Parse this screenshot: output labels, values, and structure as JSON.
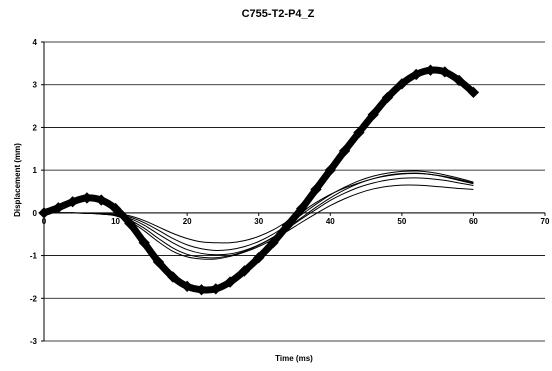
{
  "chart_data": {
    "type": "line",
    "title": "C755-T2-P4_Z",
    "xlabel": "Time (ms)",
    "ylabel": "Displacement (mm)",
    "xlim": [
      0,
      70
    ],
    "ylim": [
      -3,
      4
    ],
    "x_ticks": [
      0,
      10,
      20,
      30,
      40,
      50,
      60,
      70
    ],
    "y_ticks": [
      4,
      3,
      2,
      1,
      0,
      -1,
      -2,
      -3
    ],
    "x_tick_labels": [
      "0",
      "10",
      "20",
      "30",
      "40",
      "50",
      "60",
      "70"
    ],
    "y_tick_labels": [
      "4",
      "3",
      "2",
      "1",
      "0",
      "-1",
      "-2",
      "-3"
    ],
    "grid": "horizontal",
    "legend": "none",
    "series": [
      {
        "style": "thick-markers",
        "color": "#000000",
        "x": [
          0,
          2,
          4,
          6,
          8,
          10,
          12,
          14,
          16,
          18,
          20,
          22,
          24,
          26,
          28,
          30,
          32,
          34,
          36,
          38,
          40,
          42,
          44,
          46,
          48,
          50,
          52,
          54,
          56,
          58,
          60
        ],
        "y": [
          0.0,
          0.12,
          0.26,
          0.35,
          0.3,
          0.1,
          -0.25,
          -0.7,
          -1.15,
          -1.5,
          -1.72,
          -1.8,
          -1.78,
          -1.62,
          -1.36,
          -1.05,
          -0.7,
          -0.3,
          0.1,
          0.55,
          1.0,
          1.45,
          1.88,
          2.3,
          2.7,
          3.02,
          3.24,
          3.34,
          3.3,
          3.1,
          2.82
        ]
      },
      {
        "style": "thin",
        "color": "#000000",
        "x": [
          0,
          2,
          4,
          6,
          8,
          10,
          12,
          14,
          16,
          18,
          20,
          22,
          24,
          26,
          28,
          30,
          32,
          34,
          36,
          38,
          40,
          42,
          44,
          46,
          48,
          50,
          52,
          54,
          56,
          58,
          60
        ],
        "y": [
          0.0,
          0.0,
          0.0,
          -0.01,
          -0.02,
          -0.03,
          -0.07,
          -0.18,
          -0.33,
          -0.48,
          -0.6,
          -0.68,
          -0.7,
          -0.7,
          -0.65,
          -0.55,
          -0.4,
          -0.2,
          0.02,
          0.24,
          0.43,
          0.58,
          0.7,
          0.8,
          0.87,
          0.91,
          0.92,
          0.9,
          0.85,
          0.78,
          0.7
        ]
      },
      {
        "style": "thin",
        "color": "#000000",
        "x": [
          0,
          2,
          4,
          6,
          8,
          10,
          12,
          14,
          16,
          18,
          20,
          22,
          24,
          26,
          28,
          30,
          32,
          34,
          36,
          38,
          40,
          42,
          44,
          46,
          48,
          50,
          52,
          54,
          56,
          58,
          60
        ],
        "y": [
          0.0,
          0.0,
          0.0,
          -0.01,
          -0.02,
          -0.04,
          -0.1,
          -0.23,
          -0.41,
          -0.6,
          -0.75,
          -0.84,
          -0.88,
          -0.86,
          -0.79,
          -0.67,
          -0.5,
          -0.28,
          -0.04,
          0.2,
          0.42,
          0.6,
          0.75,
          0.86,
          0.93,
          0.97,
          0.98,
          0.95,
          0.89,
          0.81,
          0.72
        ]
      },
      {
        "style": "thin",
        "color": "#000000",
        "x": [
          0,
          2,
          4,
          6,
          8,
          10,
          12,
          14,
          16,
          18,
          20,
          22,
          24,
          26,
          28,
          30,
          32,
          34,
          36,
          38,
          40,
          42,
          44,
          46,
          48,
          50,
          52,
          54,
          56,
          58,
          60
        ],
        "y": [
          0.0,
          0.0,
          0.0,
          -0.01,
          -0.02,
          -0.05,
          -0.13,
          -0.29,
          -0.5,
          -0.7,
          -0.86,
          -0.95,
          -0.98,
          -0.96,
          -0.88,
          -0.75,
          -0.57,
          -0.35,
          -0.11,
          0.13,
          0.35,
          0.54,
          0.69,
          0.8,
          0.88,
          0.92,
          0.93,
          0.9,
          0.84,
          0.76,
          0.68
        ]
      },
      {
        "style": "thin",
        "color": "#000000",
        "x": [
          0,
          2,
          4,
          6,
          8,
          10,
          12,
          14,
          16,
          18,
          20,
          22,
          24,
          26,
          28,
          30,
          32,
          34,
          36,
          38,
          40,
          42,
          44,
          46,
          48,
          50,
          52,
          54,
          56,
          58,
          60
        ],
        "y": [
          0.0,
          0.0,
          0.0,
          -0.01,
          -0.03,
          -0.06,
          -0.17,
          -0.36,
          -0.6,
          -0.82,
          -0.97,
          -1.04,
          -1.05,
          -1.0,
          -0.9,
          -0.76,
          -0.58,
          -0.37,
          -0.14,
          0.08,
          0.29,
          0.46,
          0.6,
          0.7,
          0.77,
          0.81,
          0.82,
          0.8,
          0.76,
          0.7,
          0.64
        ]
      },
      {
        "style": "thin",
        "color": "#000000",
        "x": [
          0,
          2,
          4,
          6,
          8,
          10,
          12,
          14,
          16,
          18,
          20,
          22,
          24,
          26,
          28,
          30,
          32,
          34,
          36,
          38,
          40,
          42,
          44,
          46,
          48,
          50,
          52,
          54,
          56,
          58,
          60
        ],
        "y": [
          0.0,
          0.0,
          0.0,
          -0.01,
          -0.03,
          -0.07,
          -0.2,
          -0.42,
          -0.68,
          -0.9,
          -1.03,
          -1.08,
          -1.08,
          -1.02,
          -0.92,
          -0.79,
          -0.62,
          -0.43,
          -0.22,
          -0.02,
          0.17,
          0.33,
          0.46,
          0.56,
          0.62,
          0.65,
          0.65,
          0.63,
          0.6,
          0.57,
          0.55
        ]
      }
    ]
  }
}
